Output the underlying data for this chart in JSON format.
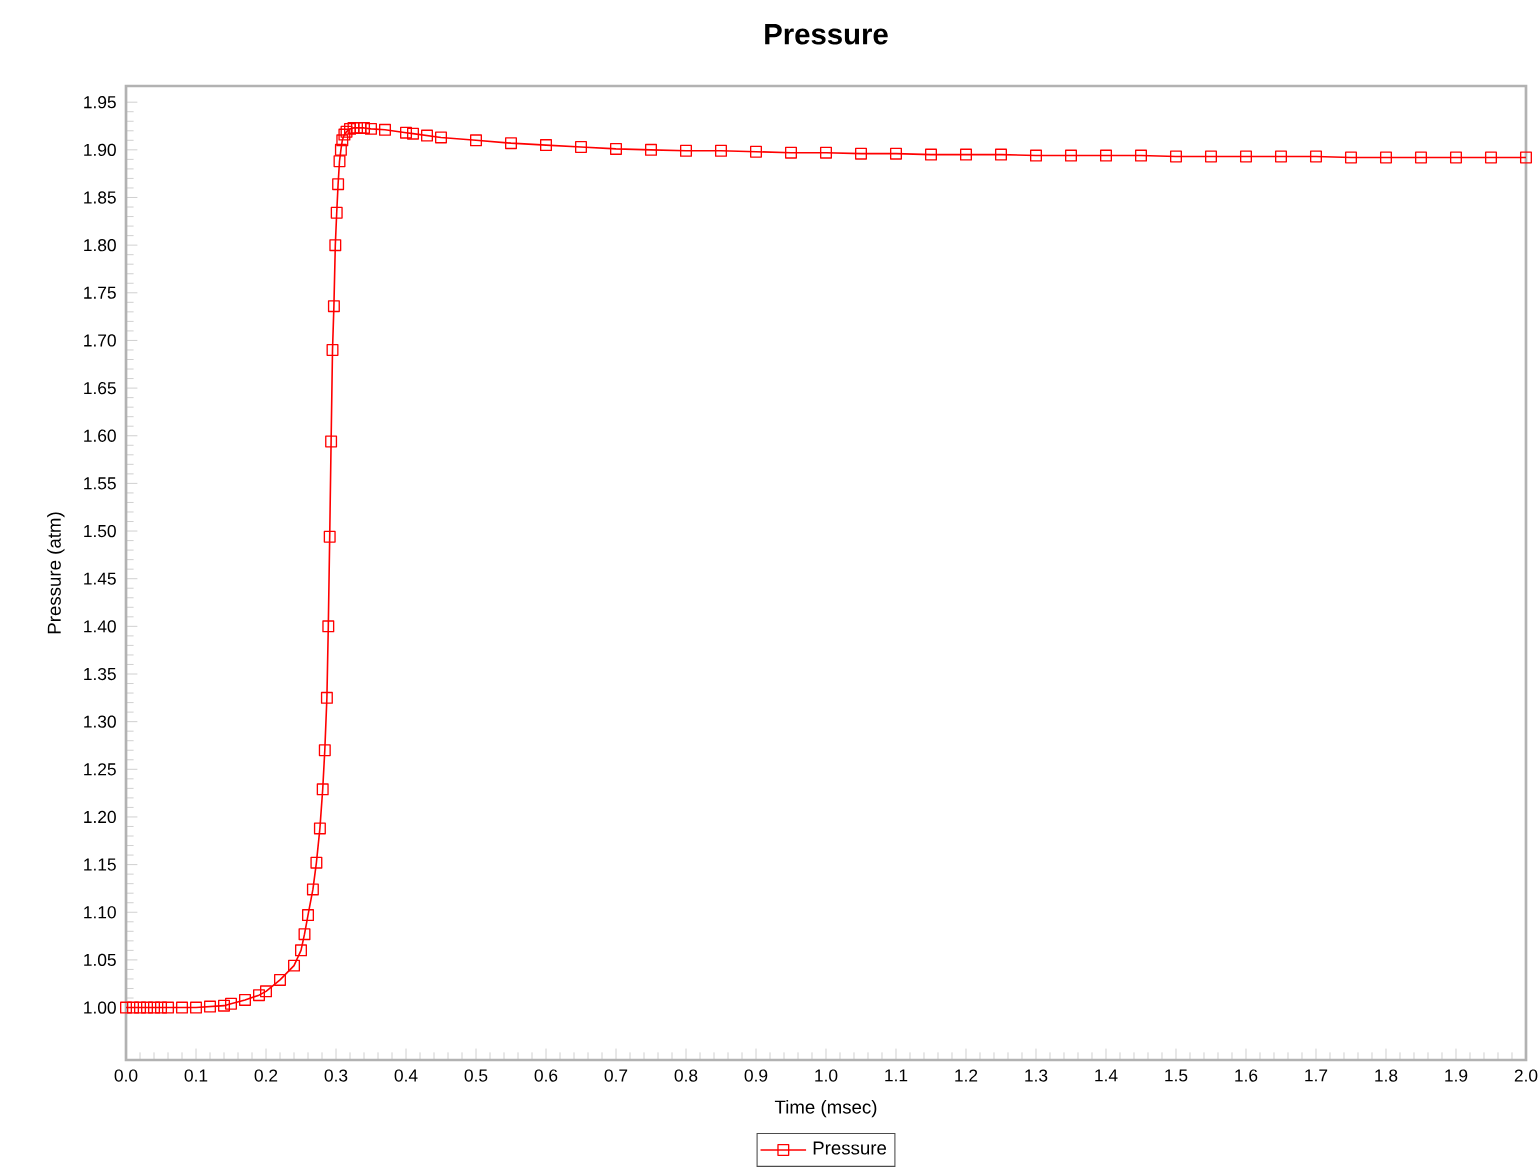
{
  "chart_data": {
    "type": "line",
    "title": "Pressure",
    "xlabel": "Time (msec)",
    "ylabel": "Pressure (atm)",
    "xlim": [
      0,
      2.0
    ],
    "ylim": [
      0.945,
      1.967
    ],
    "xticks": [
      {
        "value": 0,
        "label": "0.0"
      },
      0.1,
      0.2,
      0.3,
      0.4,
      0.5,
      0.6,
      0.7,
      0.8,
      0.9,
      {
        "value": 1,
        "label": "1.0"
      },
      1.1,
      1.2,
      1.3,
      1.4,
      1.5,
      1.6,
      1.7,
      1.8,
      1.9,
      {
        "value": 2,
        "label": "2.0"
      }
    ],
    "yticks": [
      {
        "value": 1,
        "label": "1.00"
      },
      1.05,
      {
        "value": 1.1,
        "label": "1.10"
      },
      1.15,
      {
        "value": 1.2,
        "label": "1.20"
      },
      1.25,
      {
        "value": 1.3,
        "label": "1.30"
      },
      1.35,
      {
        "value": 1.4,
        "label": "1.40"
      },
      1.45,
      {
        "value": 1.5,
        "label": "1.50"
      },
      1.55,
      {
        "value": 1.6,
        "label": "1.60"
      },
      1.65,
      {
        "value": 1.7,
        "label": "1.70"
      },
      1.75,
      {
        "value": 1.8,
        "label": "1.80"
      },
      1.85,
      {
        "value": 1.9,
        "label": "1.90"
      },
      1.95
    ],
    "grid": false,
    "legend": "bottom",
    "marker": "square",
    "line_style": "solid",
    "x": [
      0,
      0.01,
      0.02,
      0.03,
      0.04,
      0.05,
      0.06,
      0.08,
      0.1,
      0.12,
      0.14,
      0.15,
      0.17,
      0.19,
      0.2,
      0.22,
      0.24,
      0.25,
      0.255,
      0.26,
      0.267,
      0.272,
      0.277,
      0.281,
      0.284,
      0.287,
      0.289,
      0.291,
      0.293,
      0.295,
      0.297,
      0.299,
      0.301,
      0.303,
      0.305,
      0.307,
      0.309,
      0.312,
      0.315,
      0.32,
      0.325,
      0.33,
      0.335,
      0.34,
      0.35,
      0.37,
      0.4,
      0.41,
      0.43,
      0.45,
      0.5,
      0.55,
      0.6,
      0.65,
      0.7,
      0.75,
      0.8,
      0.85,
      0.9,
      0.95,
      1.0,
      1.05,
      1.1,
      1.15,
      1.2,
      1.25,
      1.3,
      1.35,
      1.4,
      1.45,
      1.5,
      1.55,
      1.6,
      1.65,
      1.7,
      1.75,
      1.8,
      1.85,
      1.9,
      1.95,
      2.0
    ],
    "series": [
      {
        "name": "Pressure",
        "color": "#ff0000",
        "values": [
          1.0,
          1.0,
          1.0,
          1.0,
          1.0,
          1.0,
          1.0,
          1.0,
          1.0,
          1.001,
          1.002,
          1.004,
          1.008,
          1.013,
          1.017,
          1.029,
          1.044,
          1.06,
          1.077,
          1.097,
          1.124,
          1.152,
          1.188,
          1.229,
          1.27,
          1.325,
          1.4,
          1.494,
          1.594,
          1.69,
          1.736,
          1.8,
          1.834,
          1.864,
          1.888,
          1.9,
          1.91,
          1.916,
          1.919,
          1.922,
          1.923,
          1.923,
          1.923,
          1.923,
          1.922,
          1.921,
          1.918,
          1.917,
          1.915,
          1.913,
          1.91,
          1.907,
          1.905,
          1.903,
          1.901,
          1.9,
          1.899,
          1.899,
          1.898,
          1.897,
          1.897,
          1.896,
          1.896,
          1.895,
          1.895,
          1.895,
          1.894,
          1.894,
          1.894,
          1.894,
          1.893,
          1.893,
          1.893,
          1.893,
          1.893,
          1.892,
          1.892,
          1.892,
          1.892,
          1.892,
          1.892
        ]
      }
    ]
  }
}
